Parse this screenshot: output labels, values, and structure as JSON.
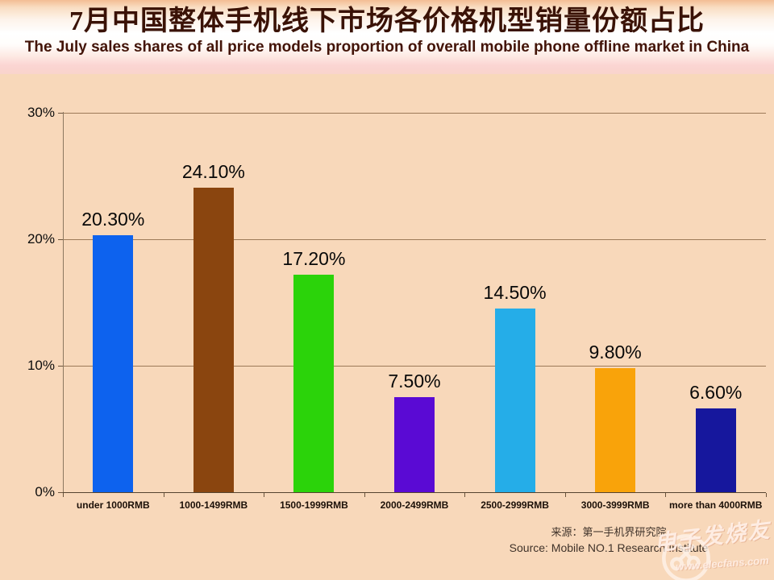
{
  "header": {
    "title": "7月中国整体手机线下市场各价格机型销量份额占比",
    "subtitle": "The July sales shares of all price models proportion of overall mobile phone offline market in China"
  },
  "chart_data": {
    "type": "bar",
    "title": "7月中国整体手机线下市场各价格机型销量份额占比",
    "categories": [
      "under 1000RMB",
      "1000-1499RMB",
      "1500-1999RMB",
      "2000-2499RMB",
      "2500-2999RMB",
      "3000-3999RMB",
      "more than 4000RMB"
    ],
    "values": [
      20.3,
      24.1,
      17.2,
      7.5,
      14.5,
      9.8,
      6.6
    ],
    "value_labels": [
      "20.30%",
      "24.10%",
      "17.20%",
      "7.50%",
      "14.50%",
      "9.80%",
      "6.60%"
    ],
    "bar_colors": [
      "#0d62ee",
      "#8a450f",
      "#2bd30a",
      "#5a0ad4",
      "#25ade8",
      "#f9a30a",
      "#16179d"
    ],
    "y_tick_labels": [
      "30%",
      "20%",
      "10%",
      "0%"
    ],
    "y_tick_values": [
      30,
      20,
      10,
      0
    ],
    "ylim": [
      0,
      30
    ],
    "grid": true,
    "legend": "none",
    "xlabel": "",
    "ylabel": "",
    "background_color": "#f8d8ba"
  },
  "source": {
    "line1": "来源：第一手机界研究院",
    "line2": "Source: Mobile NO.1 Research Institute"
  },
  "watermark": {
    "brand": "电子发烧友",
    "url": "www.elecfans.com"
  }
}
